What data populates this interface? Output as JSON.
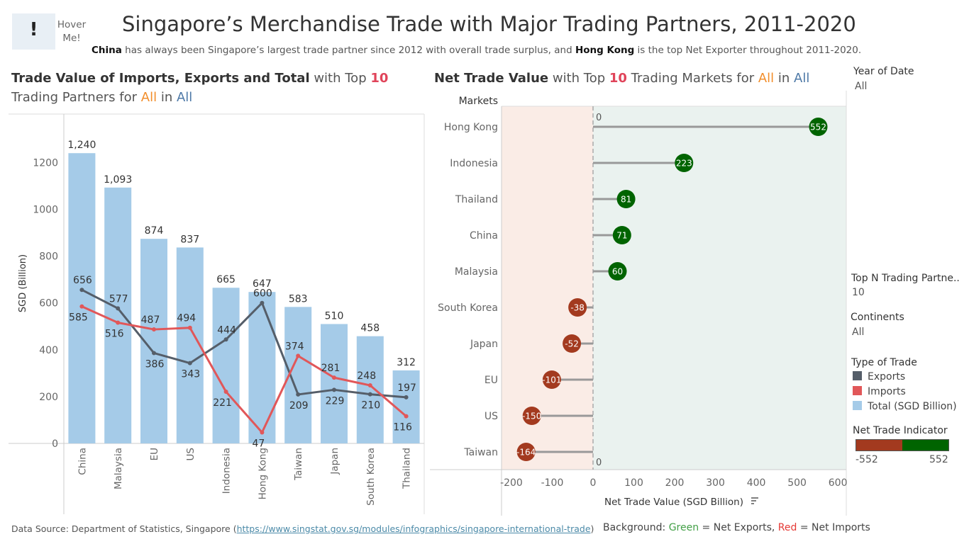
{
  "hover": {
    "icon": "!",
    "icon_name": "exclamation-icon",
    "text": "Hover Me!"
  },
  "title": "Singapore’s Merchandise Trade with Major Trading Partners, 2011-2020",
  "subtitle": {
    "p1": "China",
    "p2": " has always been Singapore’s largest trade partner since 2012 with overall trade surplus, and ",
    "p3": "Hong Kong",
    "p4": " is the top Net Exporter throughout 2011-2020."
  },
  "left_title": {
    "a": "Trade Value of Imports, Exports and Total",
    "b": " with Top ",
    "n": "10",
    "c": "Trading Partners for ",
    "d": "All",
    "e": " in ",
    "f": "All"
  },
  "right_title": {
    "a": "Net Trade Value",
    "b": " with Top ",
    "n": "10",
    "c": " Trading Markets for ",
    "d": "All",
    "e": " in ",
    "f": "All"
  },
  "filters": {
    "year_label": "Year of Date",
    "year_value": "All",
    "topn_label": "Top N Trading Partne..",
    "topn_value": "10",
    "continents_label": "Continents",
    "continents_value": "All"
  },
  "legend": {
    "title": "Type of Trade",
    "items": [
      {
        "label": "Exports",
        "color": "#555e69"
      },
      {
        "label": "Imports",
        "color": "#e15759"
      },
      {
        "label": "Total (SGD Billion)",
        "color": "#a5cbe8"
      }
    ]
  },
  "indicator": {
    "title": "Net Trade Indicator",
    "min": "-552",
    "max": "552",
    "neg_color": "#a33a1f",
    "pos_color": "#006400"
  },
  "footer": {
    "source_prefix": "Data Source: Department of Statistics, Singapore (",
    "source_url": "https://www.singstat.gov.sg/modules/infographics/singapore-international-trade",
    "source_suffix": ")",
    "bg_label": "Background: ",
    "bg_green": "Green",
    "bg_mid": " = Net Exports, ",
    "bg_red": "Red",
    "bg_end": " = Net Imports"
  },
  "chart_data": [
    {
      "type": "bar",
      "ylabel": "SGD (Billion)",
      "ylim": [
        0,
        1350
      ],
      "yticks": [
        0,
        200,
        400,
        600,
        800,
        1000,
        1200
      ],
      "categories": [
        "China",
        "Malaysia",
        "EU",
        "US",
        "Indonesia",
        "Hong Kong",
        "Taiwan",
        "Japan",
        "South Korea",
        "Thailand"
      ],
      "bar_labels": [
        "1,240",
        "1,093",
        "874",
        "837",
        "665",
        "647",
        "583",
        "510",
        "458",
        "312"
      ],
      "series": [
        {
          "name": "Total (SGD Billion)",
          "kind": "bar",
          "color": "#a5cbe8",
          "values": [
            1240,
            1093,
            874,
            837,
            665,
            647,
            583,
            510,
            458,
            312
          ]
        },
        {
          "name": "Exports",
          "kind": "line",
          "color": "#555e69",
          "values": [
            656,
            577,
            386,
            343,
            444,
            600,
            209,
            229,
            210,
            197
          ]
        },
        {
          "name": "Imports",
          "kind": "line",
          "color": "#e15759",
          "values": [
            585,
            516,
            487,
            494,
            221,
            47,
            374,
            281,
            248,
            116
          ]
        }
      ]
    },
    {
      "type": "lollipop",
      "ylabel": "Markets",
      "xlabel": "Net Trade Value (SGD Billion)",
      "xlim": [
        -225,
        620
      ],
      "xticks": [
        -200,
        -100,
        0,
        100,
        200,
        300,
        400,
        500,
        600
      ],
      "zero_label": "0",
      "categories": [
        "Hong Kong",
        "Indonesia",
        "Thailand",
        "China",
        "Malaysia",
        "South Korea",
        "Japan",
        "EU",
        "US",
        "Taiwan"
      ],
      "values": [
        552,
        223,
        81,
        71,
        60,
        -38,
        -52,
        -101,
        -150,
        -164
      ],
      "pos_color": "#006400",
      "neg_color": "#a33a1f",
      "bg_pos": "#eaf2ef",
      "bg_neg": "#faece6"
    }
  ]
}
